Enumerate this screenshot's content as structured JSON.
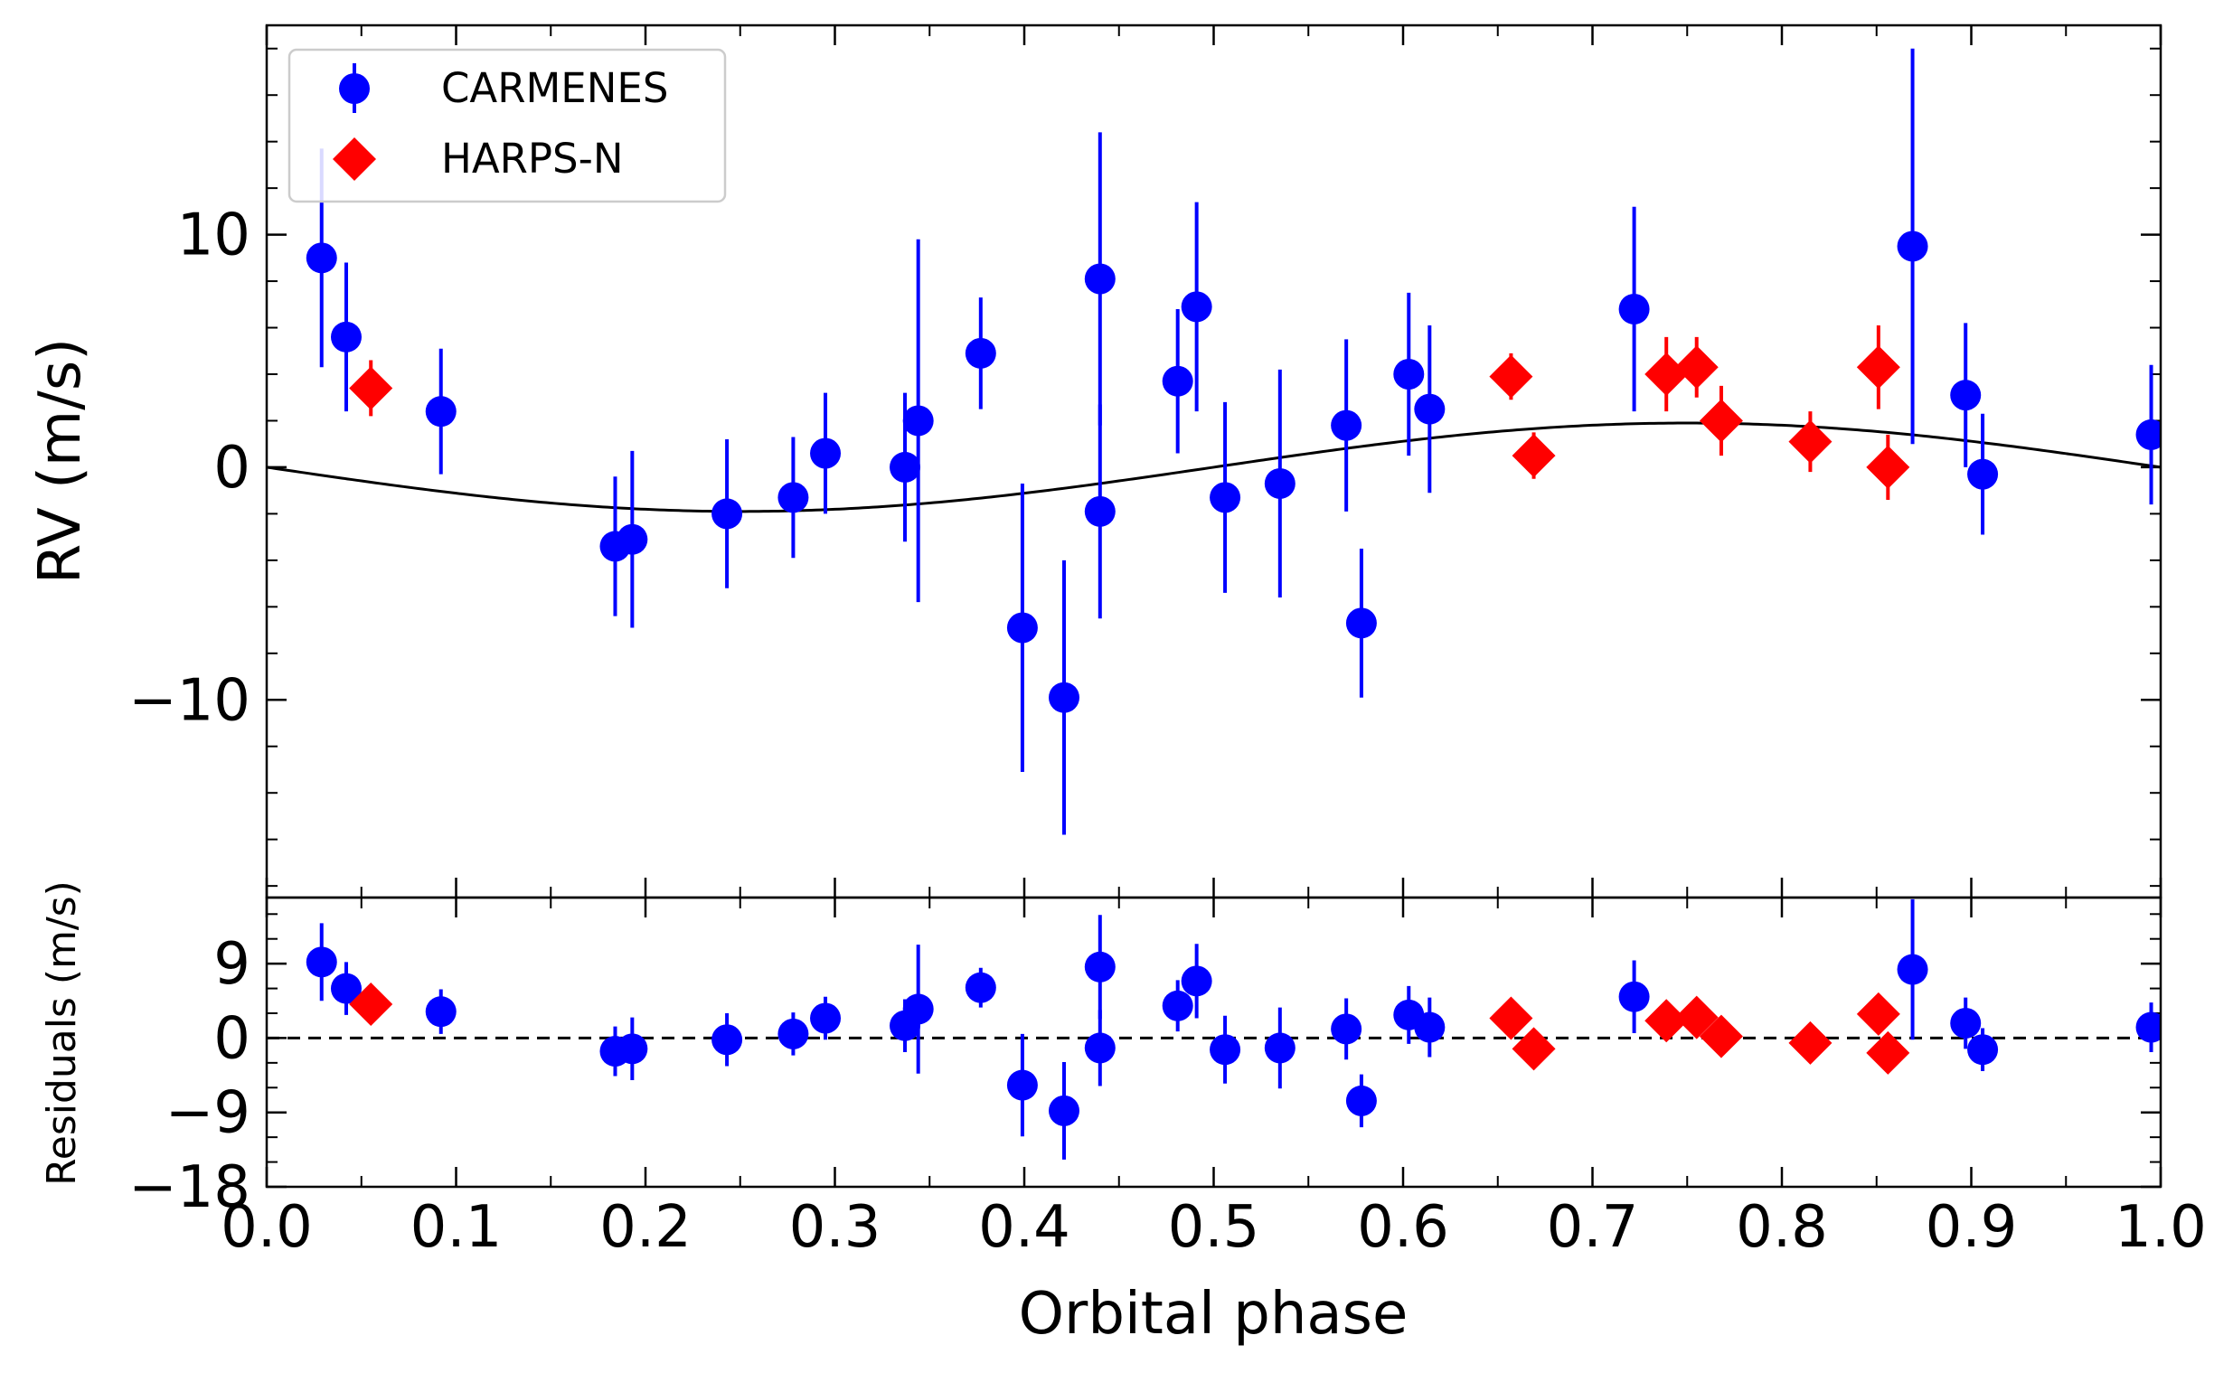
{
  "chart_data": [
    {
      "type": "scatter",
      "panel": "rv",
      "xlabel": "",
      "ylabel": "RV (m/s)",
      "xlim": [
        0.0,
        1.0
      ],
      "ylim": [
        -18.5,
        19.0
      ],
      "yticks": [
        -10,
        0,
        10
      ],
      "ytick_labels": [
        "−10",
        "0",
        "10"
      ],
      "legend_location": "top-left",
      "legend": [
        "CARMENES",
        "HARPS-N"
      ],
      "model_curve": {
        "name": "Keplerian model",
        "amplitude": 1.9,
        "form": "-A*sin(2*pi*phase)"
      },
      "series": [
        {
          "name": "CARMENES",
          "color": "#0000ff",
          "marker": "circle",
          "points": [
            {
              "x": 0.029,
              "y": 9.0,
              "err": 4.7
            },
            {
              "x": 0.042,
              "y": 5.6,
              "err": 3.2
            },
            {
              "x": 0.092,
              "y": 2.4,
              "err": 2.7
            },
            {
              "x": 0.184,
              "y": -3.4,
              "err": 3.0
            },
            {
              "x": 0.193,
              "y": -3.1,
              "err": 3.8
            },
            {
              "x": 0.243,
              "y": -2.0,
              "err": 3.2
            },
            {
              "x": 0.278,
              "y": -1.3,
              "err": 2.6
            },
            {
              "x": 0.295,
              "y": 0.6,
              "err": 2.6
            },
            {
              "x": 0.337,
              "y": 0.0,
              "err": 3.2
            },
            {
              "x": 0.344,
              "y": 2.0,
              "err": 7.8
            },
            {
              "x": 0.377,
              "y": 4.9,
              "err": 2.4
            },
            {
              "x": 0.399,
              "y": -6.9,
              "err": 6.2
            },
            {
              "x": 0.421,
              "y": -9.9,
              "err": 5.9
            },
            {
              "x": 0.44,
              "y": 8.1,
              "err": 6.3
            },
            {
              "x": 0.44,
              "y": -1.9,
              "err": 4.6
            },
            {
              "x": 0.481,
              "y": 3.7,
              "err": 3.1
            },
            {
              "x": 0.491,
              "y": 6.9,
              "err": 4.5
            },
            {
              "x": 0.506,
              "y": -1.3,
              "err": 4.1
            },
            {
              "x": 0.535,
              "y": -0.7,
              "err": 4.9
            },
            {
              "x": 0.57,
              "y": 1.8,
              "err": 3.7
            },
            {
              "x": 0.578,
              "y": -6.7,
              "err": 3.2
            },
            {
              "x": 0.603,
              "y": 4.0,
              "err": 3.5
            },
            {
              "x": 0.614,
              "y": 2.5,
              "err": 3.6
            },
            {
              "x": 0.722,
              "y": 6.8,
              "err": 4.4
            },
            {
              "x": 0.869,
              "y": 9.5,
              "err": 8.5
            },
            {
              "x": 0.897,
              "y": 3.1,
              "err": 3.1
            },
            {
              "x": 0.906,
              "y": -0.3,
              "err": 2.6
            },
            {
              "x": 0.995,
              "y": 1.4,
              "err": 3.0
            }
          ]
        },
        {
          "name": "HARPS-N",
          "color": "#ff0000",
          "marker": "diamond",
          "points": [
            {
              "x": 0.055,
              "y": 3.4,
              "err": 1.2
            },
            {
              "x": 0.657,
              "y": 3.9,
              "err": 1.0
            },
            {
              "x": 0.669,
              "y": 0.5,
              "err": 1.0
            },
            {
              "x": 0.739,
              "y": 4.0,
              "err": 1.6
            },
            {
              "x": 0.755,
              "y": 4.3,
              "err": 1.3
            },
            {
              "x": 0.768,
              "y": 2.0,
              "err": 1.5
            },
            {
              "x": 0.815,
              "y": 1.1,
              "err": 1.3
            },
            {
              "x": 0.851,
              "y": 4.3,
              "err": 1.8
            },
            {
              "x": 0.856,
              "y": 0.0,
              "err": 1.4
            }
          ]
        }
      ]
    },
    {
      "type": "scatter",
      "panel": "residuals",
      "xlabel": "Orbital phase",
      "ylabel": "Residuals (m/s)",
      "xlim": [
        0.0,
        1.0
      ],
      "ylim": [
        -18.0,
        17.0
      ],
      "xticks": [
        0.0,
        0.1,
        0.2,
        0.3,
        0.4,
        0.5,
        0.6,
        0.7,
        0.8,
        0.9,
        1.0
      ],
      "xtick_labels": [
        "0.0",
        "0.1",
        "0.2",
        "0.3",
        "0.4",
        "0.5",
        "0.6",
        "0.7",
        "0.8",
        "0.9",
        "1.0"
      ],
      "yticks": [
        -18,
        -9,
        0,
        9
      ],
      "ytick_labels": [
        "−18",
        "−9",
        "0",
        "9"
      ],
      "zero_line": "dashed",
      "series": [
        {
          "name": "CARMENES",
          "color": "#0000ff",
          "marker": "circle",
          "points": [
            {
              "x": 0.029,
              "y": 9.2,
              "err": 4.7
            },
            {
              "x": 0.042,
              "y": 6.0,
              "err": 3.2
            },
            {
              "x": 0.092,
              "y": 3.2,
              "err": 2.7
            },
            {
              "x": 0.184,
              "y": -1.6,
              "err": 3.0
            },
            {
              "x": 0.193,
              "y": -1.3,
              "err": 3.8
            },
            {
              "x": 0.243,
              "y": -0.2,
              "err": 3.2
            },
            {
              "x": 0.278,
              "y": 0.5,
              "err": 2.6
            },
            {
              "x": 0.295,
              "y": 2.4,
              "err": 2.6
            },
            {
              "x": 0.337,
              "y": 1.5,
              "err": 3.2
            },
            {
              "x": 0.344,
              "y": 3.5,
              "err": 7.8
            },
            {
              "x": 0.377,
              "y": 6.1,
              "err": 2.4
            },
            {
              "x": 0.399,
              "y": -5.7,
              "err": 6.2
            },
            {
              "x": 0.421,
              "y": -8.8,
              "err": 5.9
            },
            {
              "x": 0.44,
              "y": 8.6,
              "err": 6.3
            },
            {
              "x": 0.44,
              "y": -1.2,
              "err": 4.6
            },
            {
              "x": 0.481,
              "y": 3.9,
              "err": 3.1
            },
            {
              "x": 0.491,
              "y": 6.9,
              "err": 4.5
            },
            {
              "x": 0.506,
              "y": -1.4,
              "err": 4.1
            },
            {
              "x": 0.535,
              "y": -1.2,
              "err": 4.9
            },
            {
              "x": 0.57,
              "y": 1.1,
              "err": 3.7
            },
            {
              "x": 0.578,
              "y": -7.6,
              "err": 3.2
            },
            {
              "x": 0.603,
              "y": 2.8,
              "err": 3.5
            },
            {
              "x": 0.614,
              "y": 1.3,
              "err": 3.6
            },
            {
              "x": 0.722,
              "y": 5.0,
              "err": 4.4
            },
            {
              "x": 0.869,
              "y": 8.3,
              "err": 8.5
            },
            {
              "x": 0.897,
              "y": 1.8,
              "err": 3.1
            },
            {
              "x": 0.906,
              "y": -1.4,
              "err": 2.6
            },
            {
              "x": 0.995,
              "y": 1.3,
              "err": 3.0
            }
          ]
        },
        {
          "name": "HARPS-N",
          "color": "#ff0000",
          "marker": "diamond",
          "points": [
            {
              "x": 0.055,
              "y": 4.1,
              "err": 0
            },
            {
              "x": 0.657,
              "y": 2.4,
              "err": 0
            },
            {
              "x": 0.669,
              "y": -1.3,
              "err": 0
            },
            {
              "x": 0.739,
              "y": 2.1,
              "err": 0
            },
            {
              "x": 0.755,
              "y": 2.5,
              "err": 0
            },
            {
              "x": 0.768,
              "y": 0.2,
              "err": 0
            },
            {
              "x": 0.815,
              "y": -0.6,
              "err": 0
            },
            {
              "x": 0.851,
              "y": 2.9,
              "err": 0
            },
            {
              "x": 0.856,
              "y": -1.8,
              "err": 0
            }
          ]
        }
      ]
    }
  ]
}
